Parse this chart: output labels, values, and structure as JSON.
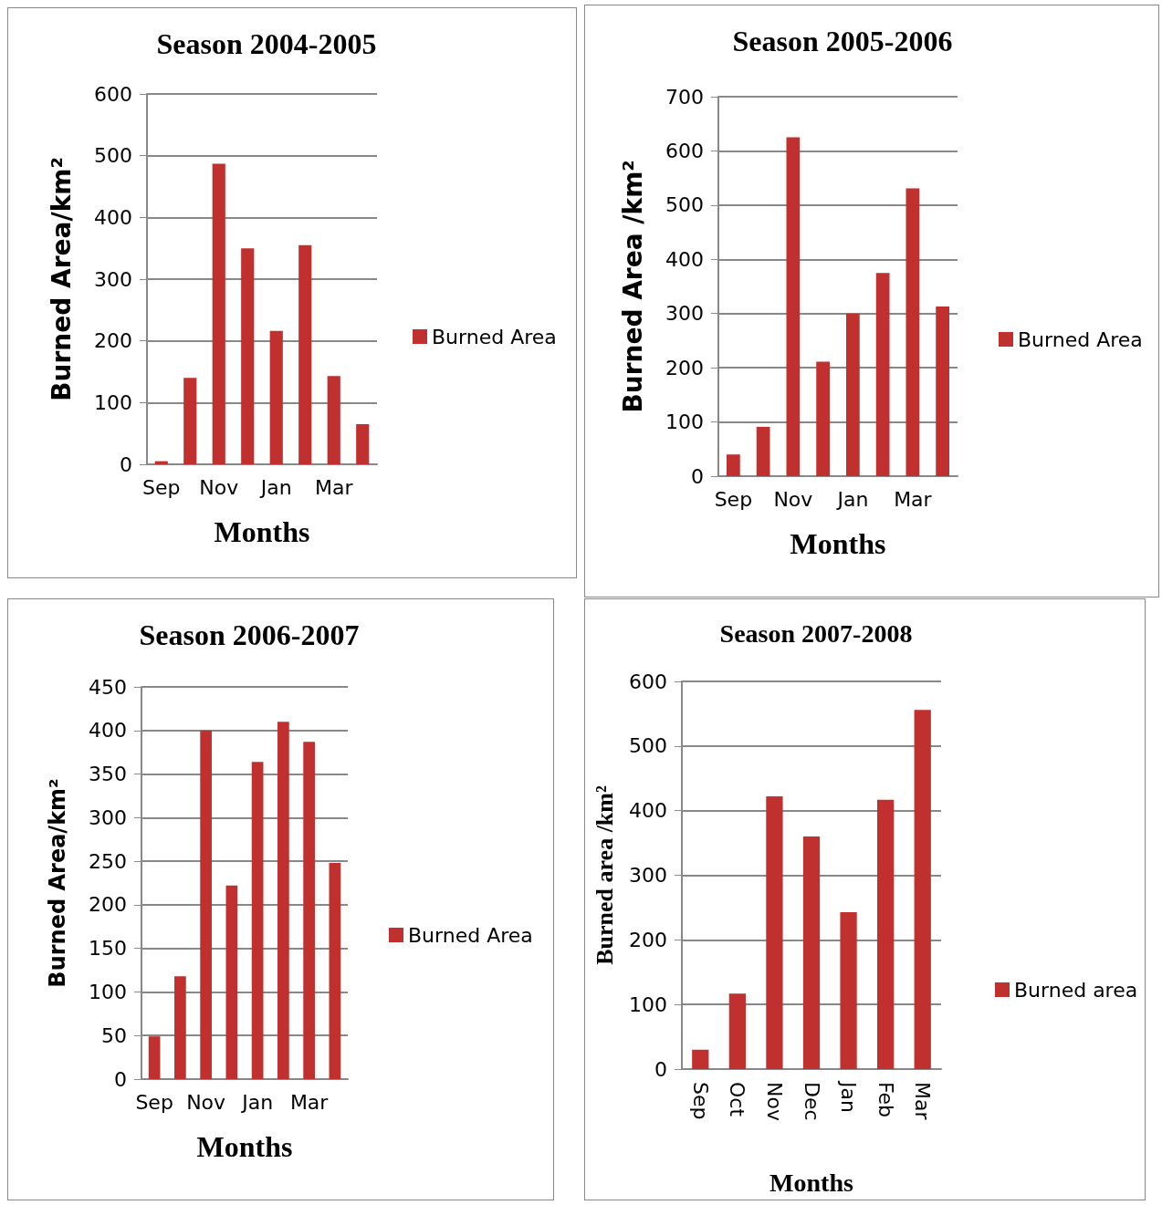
{
  "chart_data": [
    {
      "type": "bar",
      "title": "Season 2004-2005",
      "xlabel": "Months",
      "ylabel": "Burned Area/km²",
      "categories": [
        "Sep",
        null,
        "Nov",
        null,
        "Jan",
        null,
        "Mar",
        null
      ],
      "series": [
        {
          "name": "Burned Area",
          "color": "#c0302f",
          "values": [
            5,
            140,
            487,
            350,
            216,
            355,
            143,
            65
          ]
        }
      ],
      "ylim": [
        0,
        600
      ],
      "yticks": [
        0,
        100,
        200,
        300,
        400,
        500,
        600
      ],
      "grid": "y",
      "legend": "right"
    },
    {
      "type": "bar",
      "title": "Season 2005-2006",
      "xlabel": "Months",
      "ylabel": "Burned Area /km²",
      "categories": [
        "Sep",
        null,
        "Nov",
        null,
        "Jan",
        null,
        "Mar",
        null
      ],
      "series": [
        {
          "name": "Burned Area",
          "color": "#c0302f",
          "values": [
            40,
            91,
            625,
            211,
            300,
            375,
            531,
            313
          ]
        }
      ],
      "ylim": [
        0,
        700
      ],
      "yticks": [
        0,
        100,
        200,
        300,
        400,
        500,
        600,
        700
      ],
      "grid": "y",
      "legend": "right"
    },
    {
      "type": "bar",
      "title": "Season 2006-2007",
      "xlabel": "Months",
      "ylabel": "Burned Area/km²",
      "categories": [
        "Sep",
        null,
        "Nov",
        null,
        "Jan",
        null,
        "Mar",
        null
      ],
      "series": [
        {
          "name": "Burned Area",
          "color": "#c0302f",
          "values": [
            49,
            118,
            400,
            222,
            364,
            410,
            387,
            248
          ]
        }
      ],
      "ylim": [
        0,
        450
      ],
      "yticks": [
        0,
        50,
        100,
        150,
        200,
        250,
        300,
        350,
        400,
        450
      ],
      "grid": "y",
      "legend": "right"
    },
    {
      "type": "bar",
      "title": "Season 2007-2008",
      "xlabel": "Months",
      "ylabel": "Burned area /km²",
      "categories": [
        "Sep",
        "Oct",
        "Nov",
        "Dec",
        "Jan",
        "Feb",
        "Mar"
      ],
      "series": [
        {
          "name": "Burned area",
          "color": "#c0302f",
          "values": [
            30,
            117,
            422,
            360,
            243,
            417,
            556
          ]
        }
      ],
      "ylim": [
        0,
        600
      ],
      "yticks": [
        0,
        100,
        200,
        300,
        400,
        500,
        600
      ],
      "grid": "y",
      "legend": "right"
    }
  ]
}
